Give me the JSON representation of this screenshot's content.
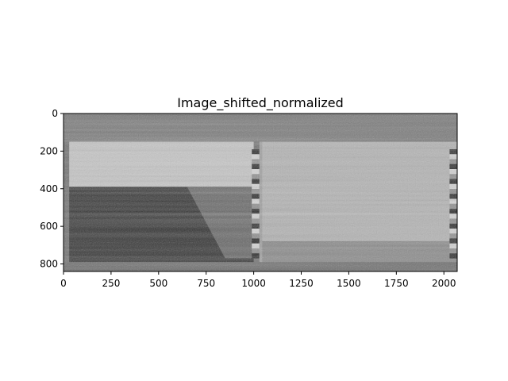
{
  "chart_data": {
    "type": "heatmap",
    "title": "Image_shifted_normalized",
    "colormap": "gray",
    "xlim": [
      0,
      2070
    ],
    "ylim": [
      840,
      0
    ],
    "xticks": [
      0,
      250,
      500,
      750,
      1000,
      1250,
      1500,
      1750,
      2000
    ],
    "yticks": [
      0,
      200,
      400,
      600,
      800
    ],
    "regions": [
      {
        "name": "top-noise-band",
        "x": [
          0,
          2070
        ],
        "y": [
          0,
          150
        ],
        "level": 0.45
      },
      {
        "name": "left-bright-strip",
        "x": [
          30,
          1000
        ],
        "y": [
          150,
          390
        ],
        "level": 0.78
      },
      {
        "name": "left-dark-region",
        "x": [
          30,
          1000
        ],
        "y": [
          390,
          840
        ],
        "level": 0.16
      },
      {
        "name": "left-diagonal-edge",
        "x": [
          650,
          1000
        ],
        "y": [
          390,
          840
        ],
        "level": 0.38
      },
      {
        "name": "right-bright-region",
        "x": [
          1040,
          2070
        ],
        "y": [
          150,
          680
        ],
        "level": 0.7
      },
      {
        "name": "right-lower-region",
        "x": [
          1040,
          2070
        ],
        "y": [
          680,
          840
        ],
        "level": 0.52
      },
      {
        "name": "bottom-noise-band",
        "x": [
          0,
          2070
        ],
        "y": [
          790,
          840
        ],
        "level": 0.4
      }
    ],
    "striped_columns": [
      {
        "x": [
          990,
          1030
        ],
        "y": [
          190,
          770
        ]
      },
      {
        "x": [
          2030,
          2070
        ],
        "y": [
          190,
          770
        ]
      }
    ]
  }
}
